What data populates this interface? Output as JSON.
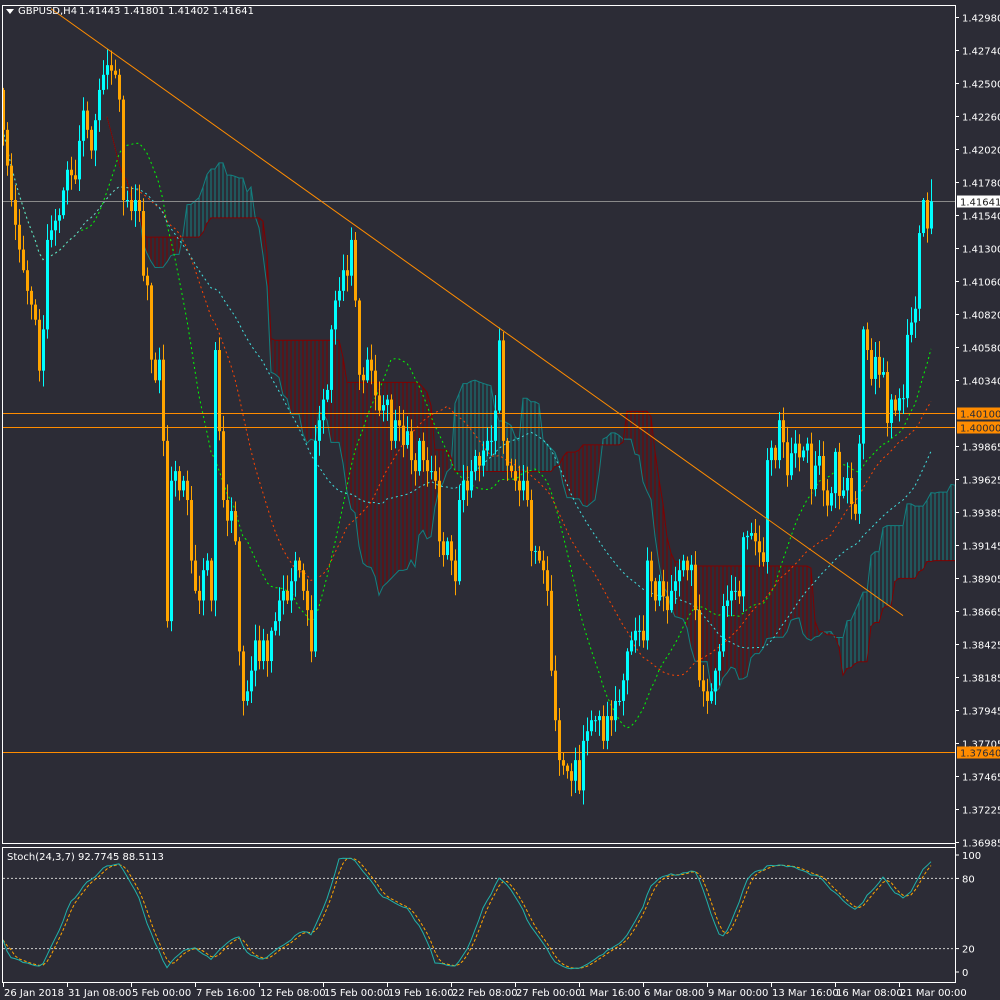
{
  "header": {
    "symbol": "GBPUSD,H4",
    "ohlc_text": "1.41443 1.41801 1.41402 1.41641",
    "dropdown_icon": "triangle-down-icon"
  },
  "colors": {
    "background": "#2c2c36",
    "bull_candle": "#00ffff",
    "bear_candle": "#ffa500",
    "trendline": "#ff8c00",
    "level_line": "#ff8c00",
    "cloud_bull": "#138080",
    "cloud_bear": "#800000",
    "ma_fast": "#00ff00",
    "ma_mid": "#ff4500",
    "ma_slow": "#40e0e0",
    "stoch_main": "#20b2aa",
    "stoch_signal": "#ffa500"
  },
  "chart_data": [
    {
      "type": "candlestick",
      "title": "GBPUSD,H4",
      "ylim": [
        1.36985,
        1.4298
      ],
      "grid": false,
      "last_bar": {
        "open": 1.41443,
        "high": 1.41801,
        "low": 1.41402,
        "close": 1.41641
      },
      "first_open": 1.4245,
      "close": [
        1.4216,
        1.419,
        1.4165,
        1.4147,
        1.4129,
        1.4114,
        1.4099,
        1.4089,
        1.4078,
        1.4041,
        1.4071,
        1.4136,
        1.4143,
        1.415,
        1.4154,
        1.4172,
        1.4187,
        1.4183,
        1.418,
        1.4208,
        1.423,
        1.4216,
        1.4201,
        1.4223,
        1.4245,
        1.4256,
        1.4263,
        1.4259,
        1.4256,
        1.4238,
        1.4165,
        1.4165,
        1.4157,
        1.4165,
        1.4157,
        1.411,
        1.4103,
        1.4049,
        1.4034,
        1.4049,
        1.399,
        1.3859,
        1.3961,
        1.3968,
        1.3954,
        1.3961,
        1.3947,
        1.3903,
        1.3881,
        1.3874,
        1.3896,
        1.3903,
        1.3874,
        1.4056,
        1.3997,
        1.3947,
        1.3932,
        1.3939,
        1.3917,
        1.3837,
        1.3801,
        1.3808,
        1.3823,
        1.3845,
        1.383,
        1.3845,
        1.383,
        1.3852,
        1.3859,
        1.3874,
        1.3881,
        1.3874,
        1.3888,
        1.3903,
        1.3896,
        1.3881,
        1.3867,
        1.3837,
        1.399,
        1.4005,
        1.402,
        1.4027,
        1.4071,
        1.4092,
        1.4099,
        1.4114,
        1.411,
        1.4136,
        1.4092,
        1.4038,
        1.4034,
        1.4049,
        1.4041,
        1.4023,
        1.4012,
        1.4016,
        1.402,
        1.399,
        1.4005,
        1.4001,
        1.3987,
        1.3997,
        1.3976,
        1.3968,
        1.399,
        1.3976,
        1.3968,
        1.3968,
        1.3961,
        1.3917,
        1.3907,
        1.3917,
        1.3903,
        1.3888,
        1.3947,
        1.3961,
        1.3954,
        1.3968,
        1.3979,
        1.3972,
        1.3983,
        1.399,
        1.399,
        1.4012,
        1.4063,
        1.399,
        1.3972,
        1.3968,
        1.3961,
        1.3954,
        1.3961,
        1.3947,
        1.391,
        1.391,
        1.3903,
        1.3896,
        1.3881,
        1.3823,
        1.3787,
        1.3758,
        1.3754,
        1.375,
        1.3743,
        1.3758,
        1.3736,
        1.3772,
        1.3779,
        1.3787,
        1.3787,
        1.379,
        1.3772,
        1.379,
        1.3787,
        1.3801,
        1.3801,
        1.3816,
        1.3837,
        1.3845,
        1.3852,
        1.3852,
        1.3845,
        1.3903,
        1.3888,
        1.3874,
        1.3888,
        1.3877,
        1.3867,
        1.3881,
        1.3888,
        1.3896,
        1.3903,
        1.3896,
        1.39,
        1.3867,
        1.3816,
        1.3808,
        1.3801,
        1.3808,
        1.3823,
        1.3837,
        1.387,
        1.3874,
        1.3881,
        1.3881,
        1.3877,
        1.392,
        1.3921,
        1.3923,
        1.3917,
        1.3909,
        1.3902,
        1.3976,
        1.3985,
        1.3976,
        1.4005,
        1.3989,
        1.3965,
        1.3981,
        1.3988,
        1.3978,
        1.3983,
        1.3988,
        1.3955,
        1.3972,
        1.3979,
        1.3954,
        1.3943,
        1.3952,
        1.3982,
        1.395,
        1.3954,
        1.3963,
        1.3944,
        1.3937,
        1.3988,
        1.4071,
        1.4056,
        1.4035,
        1.4051,
        1.4038,
        1.404,
        1.4003,
        1.402,
        1.4012,
        1.4021,
        1.4021,
        1.4067,
        1.4076,
        1.4086,
        1.4141,
        1.4165,
        1.41443,
        1.41641
      ],
      "horizontal_levels": [
        {
          "price": 1.41641,
          "label": "1.41641",
          "kind": "current"
        },
        {
          "price": 1.401,
          "label": "1.40100",
          "kind": "level"
        },
        {
          "price": 1.4,
          "label": "1.40000",
          "kind": "level"
        },
        {
          "price": 1.3764,
          "label": "1.37640",
          "kind": "level"
        }
      ],
      "trendline": {
        "from_bar": 12,
        "from_price": 1.4304,
        "to_bar": 225,
        "to_price": 1.3863
      },
      "indicators": [
        "Ichimoku cloud",
        "3 dashed moving averages"
      ],
      "price_ticks": [
        "1.42980",
        "1.42740",
        "1.42500",
        "1.42260",
        "1.42020",
        "1.41780",
        "1.41540",
        "1.41300",
        "1.41060",
        "1.40820",
        "1.40580",
        "1.40340",
        "1.39865",
        "1.39625",
        "1.39385",
        "1.39145",
        "1.38905",
        "1.38665",
        "1.38425",
        "1.38185",
        "1.37945",
        "1.37705",
        "1.37465",
        "1.37225",
        "1.36985"
      ],
      "time_ticks": [
        "26 Jan 2018",
        "31 Jan 08:00",
        "5 Feb 00:00",
        "7 Feb 16:00",
        "12 Feb 08:00",
        "15 Feb 00:00",
        "19 Feb 16:00",
        "22 Feb 08:00",
        "27 Feb 00:00",
        "1 Mar 16:00",
        "6 Mar 08:00",
        "9 Mar 00:00",
        "13 Mar 16:00",
        "16 Mar 08:00",
        "21 Mar 00:00"
      ]
    },
    {
      "type": "line",
      "title": "Stoch(24,3,7) 92.7745 88.5113",
      "ylim": [
        0,
        100
      ],
      "levels": [
        80,
        20
      ],
      "ticks": [
        "100",
        "80",
        "20",
        "0"
      ],
      "last_values": {
        "main": 92.7745,
        "signal": 88.5113
      }
    }
  ]
}
